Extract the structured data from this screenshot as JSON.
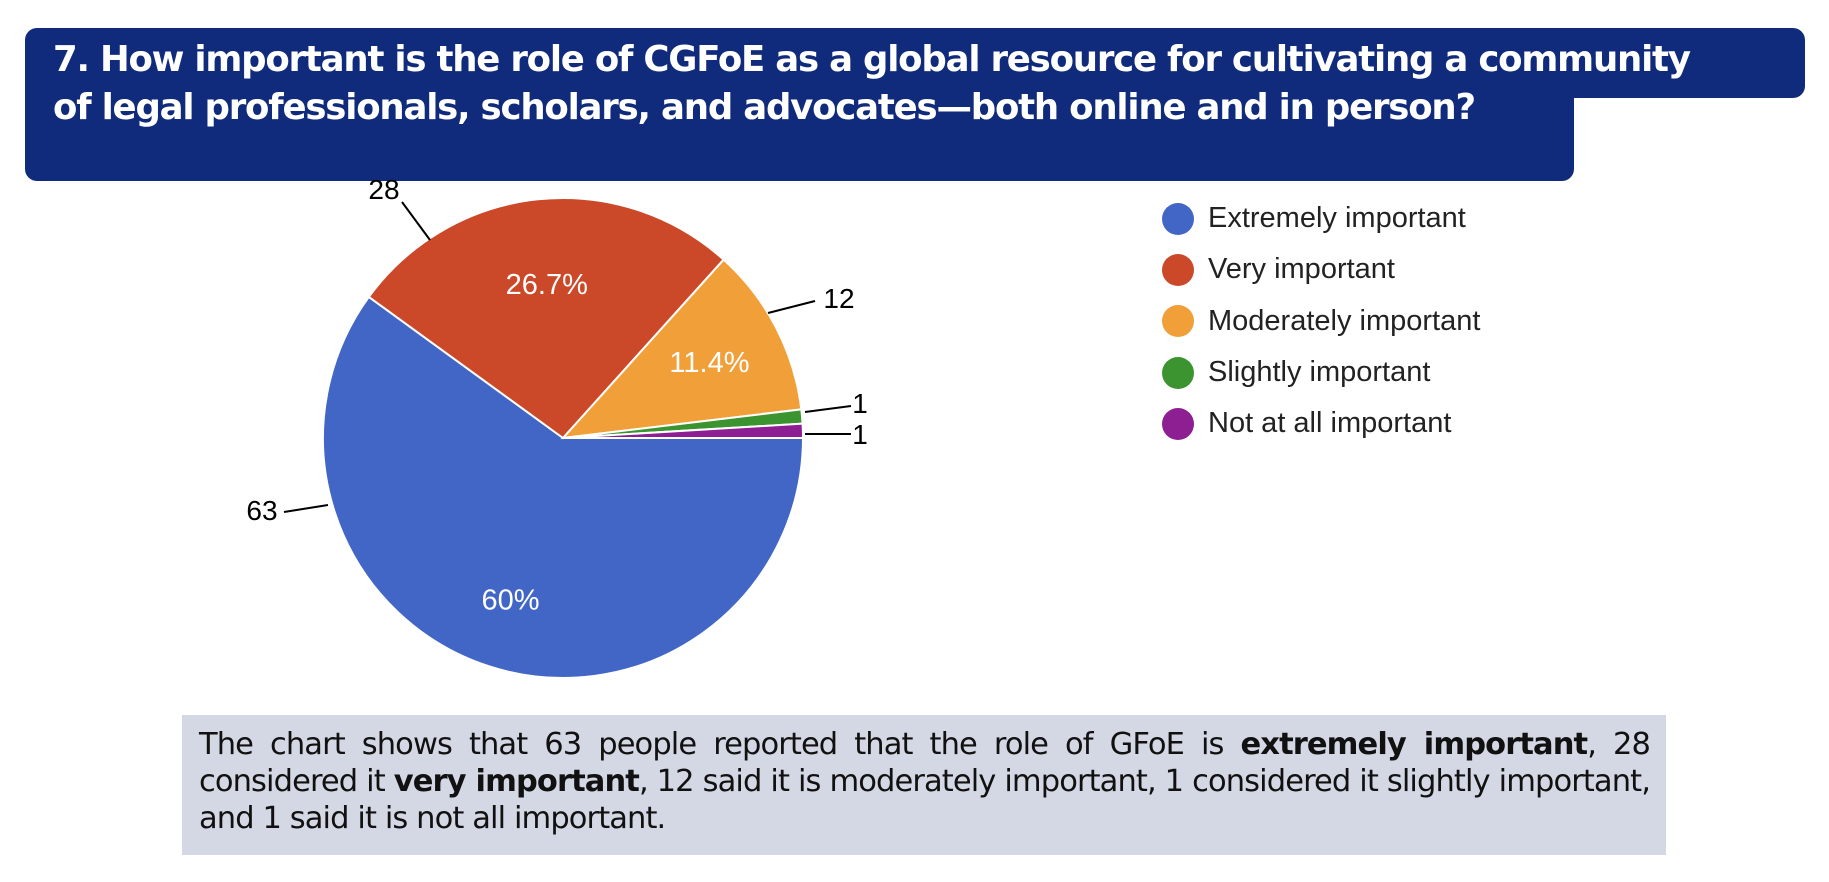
{
  "title": "7. How important is the role of CGFoE as a global resource for cultivating a community of legal professionals, scholars, and advocates—both online and in person?",
  "title_line1": "7. How important is the role of CGFoE as a global resource for cultivating a community",
  "title_line2": "of legal professionals, scholars, and advocates—both online and in person?",
  "chart_data": {
    "type": "pie",
    "title": "7. How important is the role of CGFoE as a global resource for cultivating a community of legal professionals, scholars, and advocates—both online and in person?",
    "categories": [
      "Extremely important",
      "Very important",
      "Moderately important",
      "Slightly important",
      "Not at all important"
    ],
    "values": [
      63,
      28,
      12,
      1,
      1
    ],
    "percent_labels": [
      "60%",
      "26.7%",
      "11.4%",
      "",
      ""
    ],
    "value_labels": [
      "63",
      "28",
      "12",
      "1",
      "1"
    ],
    "colors": [
      "#4166c5",
      "#cb4828",
      "#f19f39",
      "#3c9430",
      "#8e1f92"
    ],
    "legend_position": "right"
  },
  "summary": {
    "part1": "The chart shows that 63 people reported that the role of GFoE is ",
    "bold1": "extremely important",
    "part2": ", 28 considered it ",
    "bold2": "very important",
    "part3": ", 12 said it is moderately important, 1 considered it slightly important, and 1 said it is not all important."
  }
}
